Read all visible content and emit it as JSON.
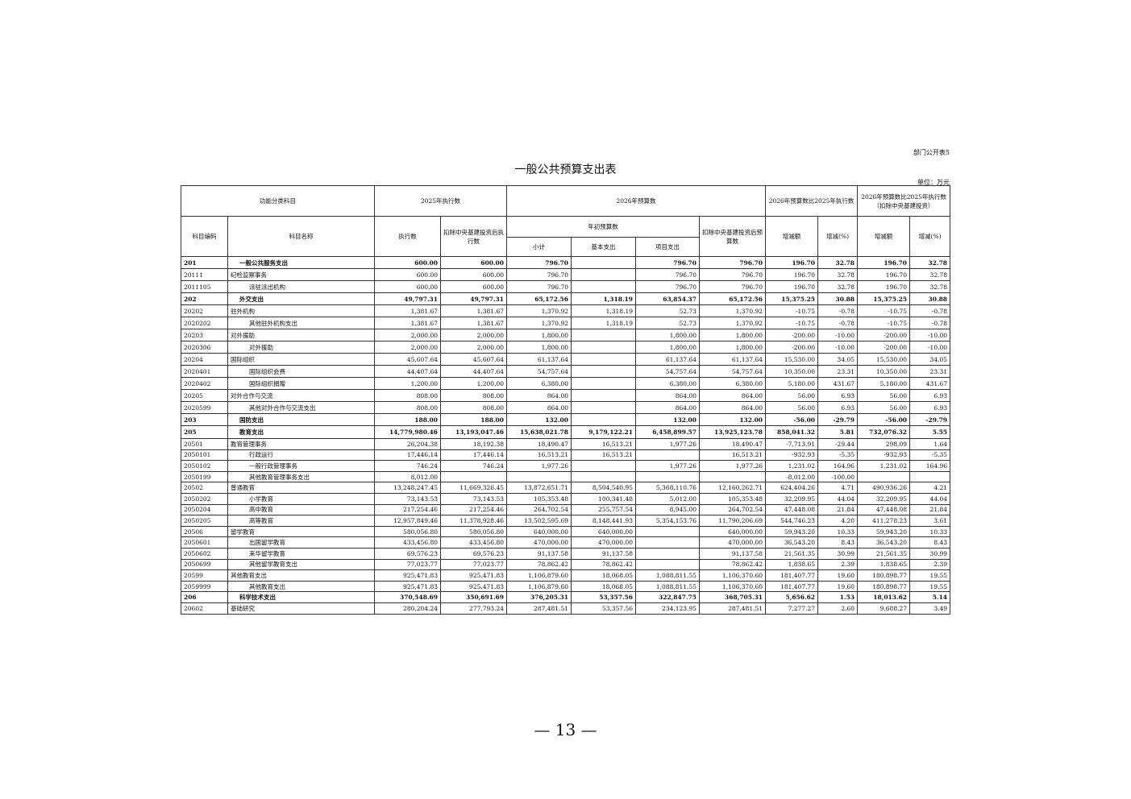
{
  "form_number": "部门公开表5",
  "title": "一般公共预算支出表",
  "unit": "单位：万元",
  "headers": {
    "classification": "功能分类科目",
    "exec_2025": "2025年执行数",
    "budget_2026": "2026年预算数",
    "cmp_exec": "2026年预算数比2025年执行数",
    "cmp_excl": "2026年预算数比2025年执行数（扣除中央基建投资）",
    "code": "科目编码",
    "name": "科目名称",
    "exec": "执行数",
    "exec_excl": "扣除中央基建投资后执行数",
    "initial_budget": "年初预算数",
    "budget_excl": "扣除中央基建投资后预算数",
    "change1": "增减额",
    "pct1": "增减(%)",
    "change2": "增减额",
    "pct2": "增减(%)",
    "subtotal": "小计",
    "basic": "基本支出",
    "project": "项目支出"
  },
  "rows": [
    {
      "level": 1,
      "code": "201",
      "name": "一般公共服务支出",
      "v": [
        "600.00",
        "600.00",
        "796.70",
        "",
        "796.70",
        "796.70",
        "196.70",
        "32.78",
        "196.70",
        "32.78"
      ]
    },
    {
      "level": 2,
      "code": "20111",
      "name": "纪检监察事务",
      "v": [
        "600.00",
        "600.00",
        "796.70",
        "",
        "796.70",
        "796.70",
        "196.70",
        "32.78",
        "196.70",
        "32.78"
      ]
    },
    {
      "level": 3,
      "code": "2011105",
      "name": "派驻派出机构",
      "v": [
        "600.00",
        "600.00",
        "796.70",
        "",
        "796.70",
        "796.70",
        "196.70",
        "32.78",
        "196.70",
        "32.78"
      ]
    },
    {
      "level": 1,
      "code": "202",
      "name": "外交支出",
      "v": [
        "49,797.31",
        "49,797.31",
        "65,172.56",
        "1,318.19",
        "63,854.37",
        "65,172.56",
        "15,375.25",
        "30.88",
        "15,375.25",
        "30.88"
      ]
    },
    {
      "level": 2,
      "code": "20202",
      "name": "驻外机构",
      "v": [
        "1,381.67",
        "1,381.67",
        "1,370.92",
        "1,318.19",
        "52.73",
        "1,370.92",
        "-10.75",
        "-0.78",
        "-10.75",
        "-0.78"
      ]
    },
    {
      "level": 3,
      "code": "2020202",
      "name": "其他驻外机构支出",
      "v": [
        "1,381.67",
        "1,381.67",
        "1,370.92",
        "1,318.19",
        "52.73",
        "1,370.92",
        "-10.75",
        "-0.78",
        "-10.75",
        "-0.78"
      ]
    },
    {
      "level": 2,
      "code": "20203",
      "name": "对外援助",
      "v": [
        "2,000.00",
        "2,000.00",
        "1,800.00",
        "",
        "1,800.00",
        "1,800.00",
        "-200.00",
        "-10.00",
        "-200.00",
        "-10.00"
      ]
    },
    {
      "level": 3,
      "code": "2020306",
      "name": "对外援助",
      "v": [
        "2,000.00",
        "2,000.00",
        "1,800.00",
        "",
        "1,800.00",
        "1,800.00",
        "-200.00",
        "-10.00",
        "-200.00",
        "-10.00"
      ]
    },
    {
      "level": 2,
      "code": "20204",
      "name": "国际组织",
      "v": [
        "45,607.64",
        "45,607.64",
        "61,137.64",
        "",
        "61,137.64",
        "61,137.64",
        "15,530.00",
        "34.05",
        "15,530.00",
        "34.05"
      ]
    },
    {
      "level": 3,
      "code": "2020401",
      "name": "国际组织会费",
      "v": [
        "44,407.64",
        "44,407.64",
        "54,757.64",
        "",
        "54,757.64",
        "54,757.64",
        "10,350.00",
        "23.31",
        "10,350.00",
        "23.31"
      ]
    },
    {
      "level": 3,
      "code": "2020402",
      "name": "国际组织捐赠",
      "v": [
        "1,200.00",
        "1,200.00",
        "6,380.00",
        "",
        "6,380.00",
        "6,380.00",
        "5,180.00",
        "431.67",
        "5,180.00",
        "431.67"
      ]
    },
    {
      "level": 2,
      "code": "20205",
      "name": "对外合作与交流",
      "v": [
        "808.00",
        "808.00",
        "864.00",
        "",
        "864.00",
        "864.00",
        "56.00",
        "6.93",
        "56.00",
        "6.93"
      ]
    },
    {
      "level": 3,
      "code": "2020599",
      "name": "其他对外合作与交流支出",
      "v": [
        "808.00",
        "808.00",
        "864.00",
        "",
        "864.00",
        "864.00",
        "56.00",
        "6.93",
        "56.00",
        "6.93"
      ]
    },
    {
      "level": 1,
      "code": "203",
      "name": "国防支出",
      "v": [
        "188.00",
        "188.00",
        "132.00",
        "",
        "132.00",
        "132.00",
        "-56.00",
        "-29.79",
        "-56.00",
        "-29.79"
      ]
    },
    {
      "level": 1,
      "code": "205",
      "name": "教育支出",
      "v": [
        "14,779,980.46",
        "13,193,047.46",
        "15,638,021.78",
        "9,179,122.21",
        "6,458,899.57",
        "13,925,123.78",
        "858,041.32",
        "5.81",
        "732,076.32",
        "5.55"
      ]
    },
    {
      "level": 2,
      "code": "20501",
      "name": "教育管理事务",
      "v": [
        "26,204.38",
        "18,192.38",
        "18,490.47",
        "16,513.21",
        "1,977.26",
        "18,490.47",
        "-7,713.91",
        "-29.44",
        "298.09",
        "1.64"
      ]
    },
    {
      "level": 3,
      "code": "2050101",
      "name": "行政运行",
      "v": [
        "17,446.14",
        "17,446.14",
        "16,513.21",
        "16,513.21",
        "",
        "16,513.21",
        "-932.93",
        "-5.35",
        "-932.93",
        "-5.35"
      ]
    },
    {
      "level": 3,
      "code": "2050102",
      "name": "一般行政管理事务",
      "v": [
        "746.24",
        "746.24",
        "1,977.26",
        "",
        "1,977.26",
        "1,977.26",
        "1,231.02",
        "164.96",
        "1,231.02",
        "164.96"
      ]
    },
    {
      "level": 3,
      "code": "2050199",
      "name": "其他教育管理事务支出",
      "v": [
        "8,012.00",
        "",
        "",
        "",
        "",
        "",
        "-8,012.00",
        "-100.00",
        "",
        ""
      ]
    },
    {
      "level": 2,
      "code": "20502",
      "name": "普通教育",
      "v": [
        "13,248,247.45",
        "11,669,326.45",
        "13,872,651.71",
        "8,504,540.95",
        "5,368,110.76",
        "12,160,262.71",
        "624,404.26",
        "4.71",
        "490,936.26",
        "4.21"
      ]
    },
    {
      "level": 3,
      "code": "2050202",
      "name": "小学教育",
      "v": [
        "73,143.53",
        "73,143.53",
        "105,353.48",
        "100,341.48",
        "5,012.00",
        "105,353.48",
        "32,209.95",
        "44.04",
        "32,209.95",
        "44.04"
      ]
    },
    {
      "level": 3,
      "code": "2050204",
      "name": "高中教育",
      "v": [
        "217,254.46",
        "217,254.46",
        "264,702.54",
        "255,757.54",
        "8,945.00",
        "264,702.54",
        "47,448.08",
        "21.84",
        "47,448.08",
        "21.84"
      ]
    },
    {
      "level": 3,
      "code": "2050205",
      "name": "高等教育",
      "v": [
        "12,957,849.46",
        "11,378,928.46",
        "13,502,595.69",
        "8,148,441.93",
        "5,354,153.76",
        "11,790,206.69",
        "544,746.23",
        "4.20",
        "411,278.23",
        "3.61"
      ]
    },
    {
      "level": 2,
      "code": "20506",
      "name": "留学教育",
      "v": [
        "580,056.80",
        "580,056.80",
        "640,000.00",
        "640,000.00",
        "",
        "640,000.00",
        "59,943.20",
        "10.33",
        "59,943.20",
        "10.33"
      ]
    },
    {
      "level": 3,
      "code": "2050601",
      "name": "出国留学教育",
      "v": [
        "433,456.80",
        "433,456.80",
        "470,000.00",
        "470,000.00",
        "",
        "470,000.00",
        "36,543.20",
        "8.43",
        "36,543.20",
        "8.43"
      ]
    },
    {
      "level": 3,
      "code": "2050602",
      "name": "来华留学教育",
      "v": [
        "69,576.23",
        "69,576.23",
        "91,137.58",
        "91,137.58",
        "",
        "91,137.58",
        "21,561.35",
        "30.99",
        "21,561.35",
        "30.99"
      ]
    },
    {
      "level": 3,
      "code": "2050699",
      "name": "其他留学教育支出",
      "v": [
        "77,023.77",
        "77,023.77",
        "78,862.42",
        "78,862.42",
        "",
        "78,862.42",
        "1,838.65",
        "2.39",
        "1,838.65",
        "2.39"
      ]
    },
    {
      "level": 2,
      "code": "20599",
      "name": "其他教育支出",
      "v": [
        "925,471.83",
        "925,471.83",
        "1,106,879.60",
        "18,068.05",
        "1,088,811.55",
        "1,106,370.60",
        "181,407.77",
        "19.60",
        "180,898.77",
        "19.55"
      ]
    },
    {
      "level": 3,
      "code": "2059999",
      "name": "其他教育支出",
      "v": [
        "925,471.83",
        "925,471.83",
        "1,106,879.60",
        "18,068.05",
        "1,088,811.55",
        "1,106,370.60",
        "181,407.77",
        "19.60",
        "180,898.77",
        "19.55"
      ]
    },
    {
      "level": 1,
      "code": "206",
      "name": "科学技术支出",
      "v": [
        "370,548.69",
        "350,691.69",
        "376,205.31",
        "53,357.56",
        "322,847.75",
        "368,705.31",
        "5,656.62",
        "1.53",
        "18,013.62",
        "5.14"
      ]
    },
    {
      "level": 2,
      "code": "20602",
      "name": "基础研究",
      "v": [
        "280,204.24",
        "277,793.24",
        "287,481.51",
        "53,357.56",
        "234,123.95",
        "287,481.51",
        "7,277.27",
        "2.60",
        "9,688.27",
        "3.49"
      ]
    }
  ],
  "page_number": "— 13 —"
}
